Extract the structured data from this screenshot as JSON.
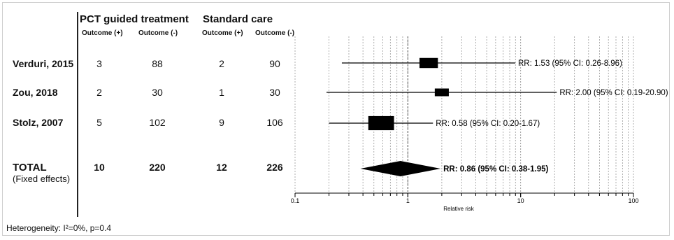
{
  "table": {
    "groups": [
      "PCT guided treatment",
      "Standard care"
    ],
    "subheaders": [
      "Outcome (+)",
      "Outcome (-)",
      "Outcome (+)",
      "Outcome (-)"
    ],
    "rows": [
      {
        "study": "Verduri, 2015",
        "values": [
          "3",
          "88",
          "2",
          "90"
        ]
      },
      {
        "study": "Zou, 2018",
        "values": [
          "2",
          "30",
          "1",
          "30"
        ]
      },
      {
        "study": "Stolz, 2007",
        "values": [
          "5",
          "102",
          "9",
          "106"
        ]
      }
    ],
    "total": {
      "label": "TOTAL",
      "sublabel": "(Fixed effects)",
      "values": [
        "10",
        "220",
        "12",
        "226"
      ]
    }
  },
  "footer": {
    "heterogeneity": "Heterogeneity: I²=0%, p=0.4"
  },
  "chart_data": {
    "type": "forest",
    "x_scale": "log",
    "xlim": [
      0.1,
      100
    ],
    "xlabel": "Relative risk",
    "x_ticks": [
      "0.1",
      "1",
      "10",
      "100"
    ],
    "grid": true,
    "studies": [
      {
        "label": "Verduri, 2015",
        "rr": 1.53,
        "ci": [
          0.26,
          8.96
        ],
        "weight": 0.25,
        "text": "RR: 1.53 (95% CI: 0.26-8.96)"
      },
      {
        "label": "Zou, 2018",
        "rr": 2.0,
        "ci": [
          0.19,
          20.9
        ],
        "weight": 0.1,
        "text": "RR: 2.00 (95% CI: 0.19-20.90)"
      },
      {
        "label": "Stolz, 2007",
        "rr": 0.58,
        "ci": [
          0.2,
          1.67
        ],
        "weight": 0.65,
        "text": "RR: 0.58 (95% CI: 0.20-1.67)"
      }
    ],
    "pooled": {
      "label": "TOTAL (Fixed effects)",
      "rr": 0.86,
      "ci": [
        0.38,
        1.95
      ],
      "text": "RR: 0.86 (95% CI: 0.38-1.95)"
    }
  }
}
